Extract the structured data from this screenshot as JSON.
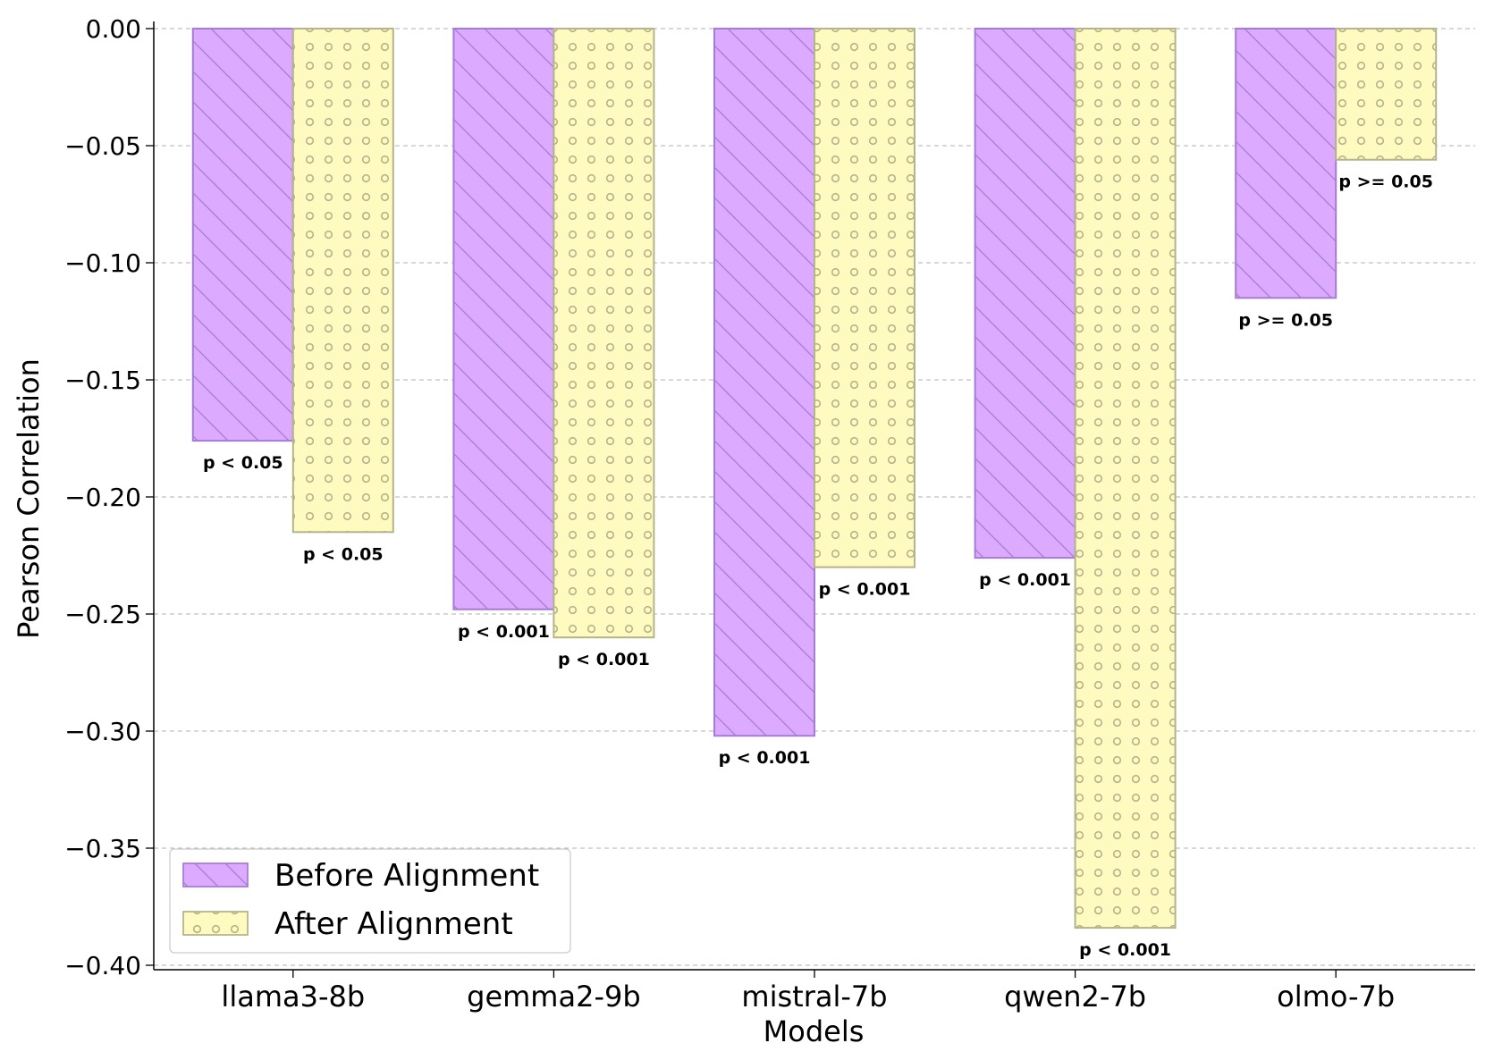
{
  "chart_data": {
    "type": "bar",
    "title": "",
    "xlabel": "Models",
    "ylabel": "Pearson Correlation",
    "ylim": [
      -0.4,
      0.0
    ],
    "yticks": [
      "0.00",
      "−0.05",
      "−0.10",
      "−0.15",
      "−0.20",
      "−0.25",
      "−0.30",
      "−0.35",
      "−0.40"
    ],
    "ytick_values": [
      0.0,
      -0.05,
      -0.1,
      -0.15,
      -0.2,
      -0.25,
      -0.3,
      -0.35,
      -0.4
    ],
    "grid": true,
    "legend_position": "bottom-left",
    "categories": [
      "llama3-8b",
      "gemma2-9b",
      "mistral-7b",
      "qwen2-7b",
      "olmo-7b"
    ],
    "series": [
      {
        "name": "Before Alignment",
        "values": [
          -0.176,
          -0.248,
          -0.302,
          -0.226,
          -0.115
        ],
        "pvalues": [
          "p < 0.05",
          "p < 0.001",
          "p < 0.001",
          "p < 0.001",
          "p >= 0.05"
        ],
        "color": "#dcaafe",
        "edge_color": "#a57bd8",
        "hatch": "diagonal"
      },
      {
        "name": "After Alignment",
        "values": [
          -0.215,
          -0.26,
          -0.23,
          -0.384,
          -0.056
        ],
        "pvalues": [
          "p < 0.05",
          "p < 0.001",
          "p < 0.001",
          "p < 0.001",
          "p >= 0.05"
        ],
        "color": "#fffac0",
        "edge_color": "#b4b48a",
        "hatch": "circles"
      }
    ]
  }
}
